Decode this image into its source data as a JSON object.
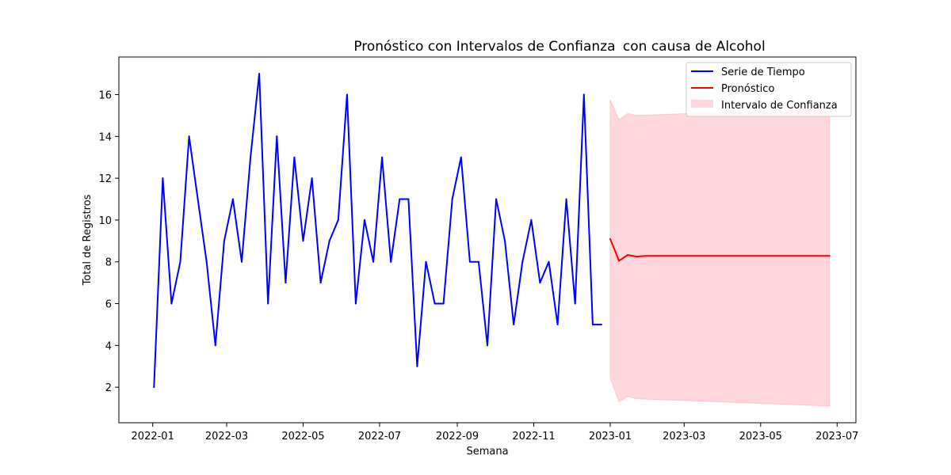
{
  "chart_data": {
    "type": "line",
    "title_main": "Pronóstico con Intervalos de Confianza",
    "title_suffix": "con causa de Alcohol",
    "xlabel": "Semana",
    "ylabel": "Total de Registros",
    "xlim": [
      "2021-12-05",
      "2023-07-16"
    ],
    "ylim": [
      0.3,
      17.8
    ],
    "x_ticks": [
      "2022-01",
      "2022-03",
      "2022-05",
      "2022-07",
      "2022-09",
      "2022-11",
      "2023-01",
      "2023-03",
      "2023-05",
      "2023-07"
    ],
    "y_ticks": [
      2,
      4,
      6,
      8,
      10,
      12,
      14,
      16
    ],
    "legend_position": "top-right",
    "series": [
      {
        "name": "Serie de Tiempo",
        "color": "#0000ff",
        "x": [
          "2022-01-02",
          "2022-01-09",
          "2022-01-16",
          "2022-01-23",
          "2022-01-30",
          "2022-02-06",
          "2022-02-13",
          "2022-02-20",
          "2022-02-27",
          "2022-03-06",
          "2022-03-13",
          "2022-03-20",
          "2022-03-27",
          "2022-04-03",
          "2022-04-10",
          "2022-04-17",
          "2022-04-24",
          "2022-05-01",
          "2022-05-08",
          "2022-05-15",
          "2022-05-22",
          "2022-05-29",
          "2022-06-05",
          "2022-06-12",
          "2022-06-19",
          "2022-06-26",
          "2022-07-03",
          "2022-07-10",
          "2022-07-17",
          "2022-07-24",
          "2022-07-31",
          "2022-08-07",
          "2022-08-14",
          "2022-08-21",
          "2022-08-28",
          "2022-09-04",
          "2022-09-11",
          "2022-09-18",
          "2022-09-25",
          "2022-10-02",
          "2022-10-09",
          "2022-10-16",
          "2022-10-23",
          "2022-10-30",
          "2022-11-06",
          "2022-11-13",
          "2022-11-20",
          "2022-11-27",
          "2022-12-04",
          "2022-12-11",
          "2022-12-18",
          "2022-12-25"
        ],
        "y": [
          2,
          12,
          6,
          8,
          14,
          11,
          8,
          4,
          9,
          11,
          8,
          13,
          17,
          6,
          14,
          7,
          13,
          9,
          12,
          7,
          9,
          10,
          16,
          6,
          10,
          8,
          13,
          8,
          11,
          11,
          3,
          8,
          6,
          6,
          11,
          13,
          8,
          8,
          4,
          11,
          9,
          5,
          8,
          10,
          7,
          8,
          5,
          11,
          6,
          16,
          5,
          5
        ]
      },
      {
        "name": "Pronóstico",
        "color": "#ff0000",
        "x": [
          "2023-01-01",
          "2023-01-08",
          "2023-01-15",
          "2023-01-22",
          "2023-01-29",
          "2023-06-25"
        ],
        "y": [
          9.1,
          8.05,
          8.33,
          8.25,
          8.28,
          8.28
        ]
      }
    ],
    "confidence_interval": {
      "name": "Intervalo de Confianza",
      "color": "#ffb6c1",
      "x": [
        "2023-01-01",
        "2023-01-08",
        "2023-01-15",
        "2023-01-22",
        "2023-06-25"
      ],
      "lower": [
        2.45,
        1.3,
        1.55,
        1.45,
        1.1
      ],
      "upper": [
        15.75,
        14.8,
        15.1,
        15.0,
        15.35
      ]
    }
  }
}
